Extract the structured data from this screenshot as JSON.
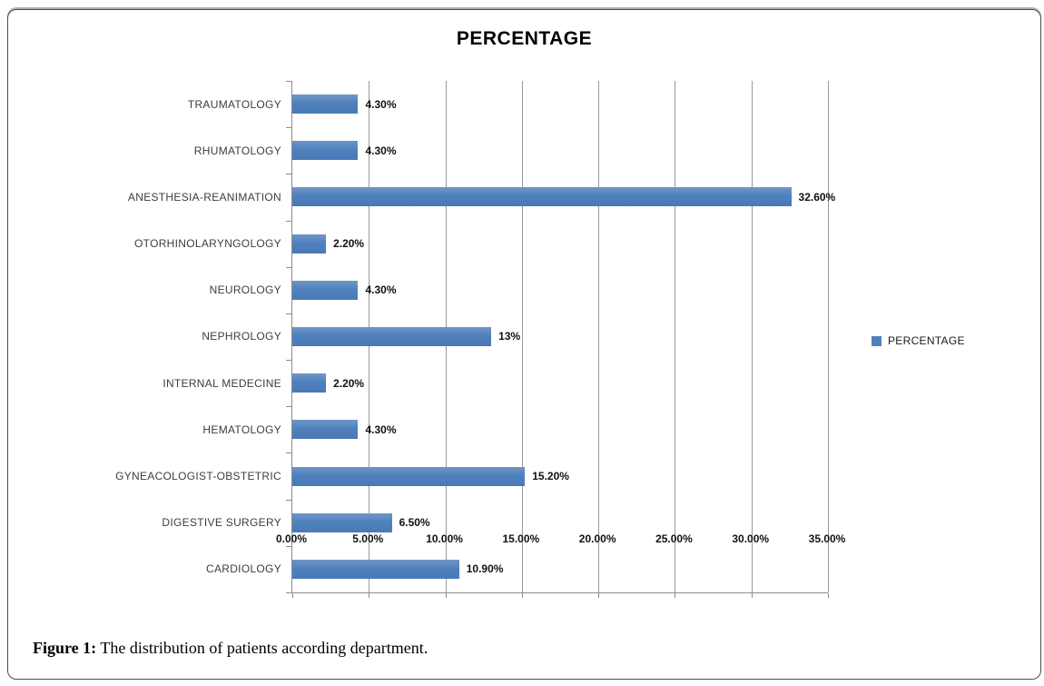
{
  "chart_data": {
    "type": "bar",
    "orientation": "horizontal",
    "title": "PERCENTAGE",
    "categories": [
      "TRAUMATOLOGY",
      "RHUMATOLOGY",
      "ANESTHESIA-REANIMATION",
      "OTORHINOLARYNGOLOGY",
      "NEUROLOGY",
      "NEPHROLOGY",
      "INTERNAL MEDECINE",
      "HEMATOLOGY",
      "GYNEACOLOGIST-OBSTETRIC",
      "DIGESTIVE SURGERY",
      "CARDIOLOGY"
    ],
    "values": [
      4.3,
      4.3,
      32.6,
      2.2,
      4.3,
      13,
      2.2,
      4.3,
      15.2,
      6.5,
      10.9
    ],
    "value_labels": [
      "4.30%",
      "4.30%",
      "32.60%",
      "2.20%",
      "4.30%",
      "13%",
      "2.20%",
      "4.30%",
      "15.20%",
      "6.50%",
      "10.90%"
    ],
    "x_ticks": [
      "0.00%",
      "5.00%",
      "10.00%",
      "15.00%",
      "20.00%",
      "25.00%",
      "30.00%",
      "35.00%"
    ],
    "xlim": [
      0,
      35
    ],
    "grid": true,
    "legend_position": "right",
    "legend": [
      "PERCENTAGE"
    ],
    "bar_color": "#4f81bd",
    "gridline_color": "#9a9a9a",
    "xlabel": "",
    "ylabel": ""
  },
  "figure_caption": {
    "prefix": "Figure 1:",
    "text": " The distribution of patients according department."
  }
}
